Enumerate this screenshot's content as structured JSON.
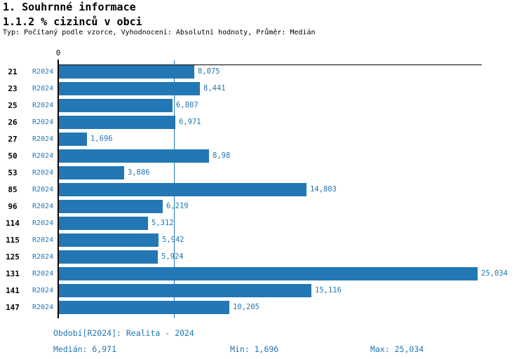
{
  "header": {
    "title1": "1. Souhrnné informace",
    "title2": "1.1.2 % cizinců v obci",
    "subtitle": "Typ: Počítaný podle vzorce, Vyhodnocení: Absolutní hodnoty, Průměr: Medián"
  },
  "chart_data": {
    "type": "bar",
    "orientation": "horizontal",
    "title": "1.1.2 % cizinců v obci",
    "xlabel": "",
    "ylabel": "",
    "axis_origin_label": "0",
    "xlim": [
      0,
      25.335
    ],
    "categories": [
      "21",
      "23",
      "25",
      "26",
      "27",
      "50",
      "53",
      "85",
      "96",
      "114",
      "115",
      "125",
      "131",
      "141",
      "147"
    ],
    "series": [
      {
        "name": "R2024",
        "values": [
          8.075,
          8.441,
          6.807,
          6.971,
          1.696,
          8.98,
          3.886,
          14.803,
          6.219,
          5.312,
          5.942,
          5.924,
          25.034,
          15.116,
          10.205
        ],
        "value_labels": [
          "8,075",
          "8,441",
          "6,807",
          "6,971",
          "1,696",
          "8,98",
          "3,886",
          "14,803",
          "6,219",
          "5,312",
          "5,942",
          "5,924",
          "25,034",
          "15,116",
          "10,205"
        ]
      }
    ],
    "median_value": 6.971,
    "median_line": true,
    "grid": false,
    "legend_position": "none",
    "bar_color": "#2277b4",
    "label_color": "#2277b4",
    "category_color": "#000000"
  },
  "footer": {
    "period": "Období[R2024]: Realita - 2024",
    "median": "Medián: 6,971",
    "min": "Min: 1,696",
    "max": "Max: 25,034"
  }
}
